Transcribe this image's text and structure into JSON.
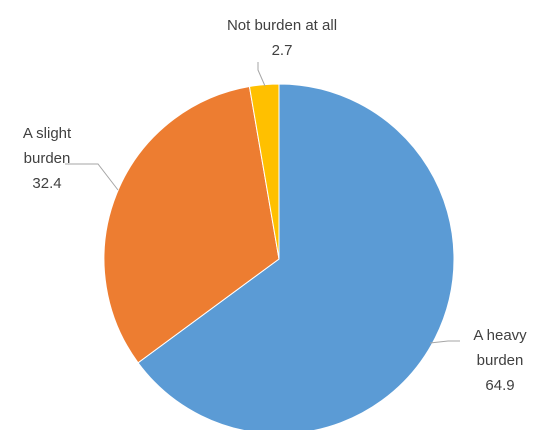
{
  "chart_data": {
    "type": "pie",
    "title": "",
    "slices": [
      {
        "label_lines": [
          "A heavy",
          "burden"
        ],
        "value": 64.9,
        "value_label": "64.9",
        "color": "#5b9bd5"
      },
      {
        "label_lines": [
          "A slight",
          "burden"
        ],
        "value": 32.4,
        "value_label": "32.4",
        "color": "#ed7d31"
      },
      {
        "label_lines": [
          "Not burden at all"
        ],
        "value": 2.7,
        "value_label": "2.7",
        "color": "#ffc000"
      }
    ],
    "start_angle_deg": 0,
    "direction": "clockwise",
    "legend": "none",
    "data_labels": "outside-with-leader-lines"
  }
}
